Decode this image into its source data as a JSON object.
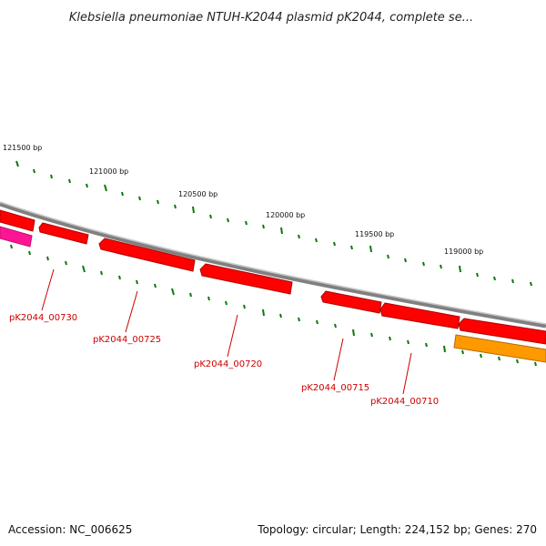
{
  "title": "Klebsiella pneumoniae NTUH-K2044 plasmid pK2044, complete se...",
  "footer": {
    "accession": "Accession: NC_006625",
    "summary": "Topology: circular; Length: 224,152 bp; Genes: 270"
  },
  "ticks": [
    "121500 bp",
    "121000 bp",
    "120500 bp",
    "120000 bp",
    "119500 bp",
    "119000 bp"
  ],
  "genes": [
    "pK2044_00730",
    "pK2044_00725",
    "pK2044_00720",
    "pK2044_00715",
    "pK2044_00710"
  ],
  "colors": {
    "backbone": "#808080",
    "gene": "#ff0000",
    "gene_dark": "#b00000",
    "label": "#cc0000",
    "ticks": "#0a7a0a",
    "magenta_feature": "#ff1493",
    "orange_feature": "#ff9900"
  }
}
